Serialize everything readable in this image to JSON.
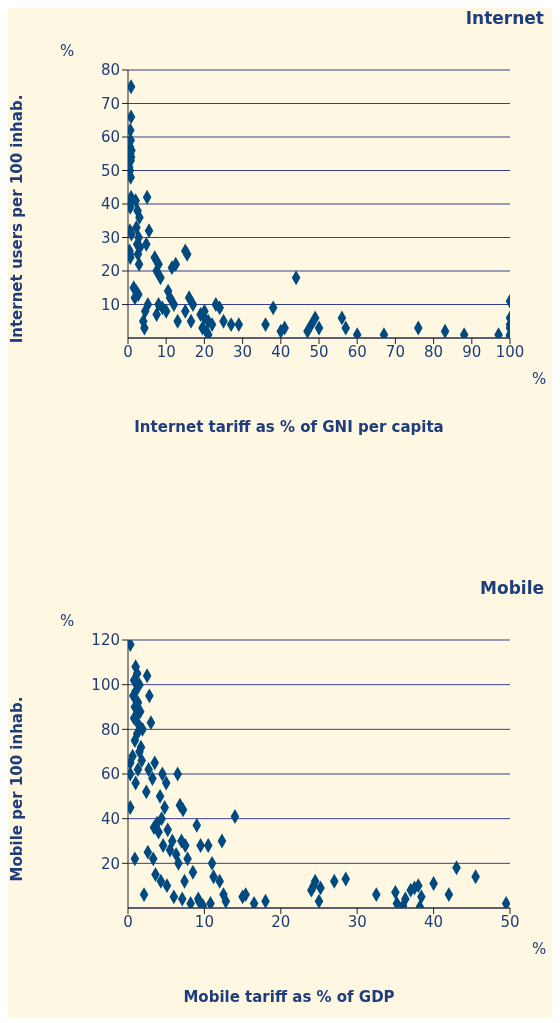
{
  "chart_data": [
    {
      "type": "scatter",
      "title": "Internet",
      "xlabel": "Internet tariff as % of GNI per capita",
      "ylabel": "Internet users per 100 inhab.",
      "annotations": [
        "%",
        "%"
      ],
      "xlim": [
        0,
        100
      ],
      "ylim": [
        0,
        80
      ],
      "xticks": [
        0,
        10,
        20,
        30,
        40,
        50,
        60,
        70,
        80,
        90,
        100
      ],
      "yticks": [
        10,
        20,
        30,
        40,
        50,
        60,
        70,
        80
      ],
      "grid": "y",
      "marker": "diamond",
      "series": [
        {
          "color": "#004a7f",
          "x": [
            0.8,
            0.8,
            0.6,
            0.7,
            0.5,
            0.9,
            0.6,
            0.8,
            0.7,
            0.3,
            0.5,
            0.7,
            0.8,
            0.4,
            0.6,
            0.5,
            0.9,
            0.4,
            0.5,
            0.6,
            2,
            2.5,
            3,
            2.2,
            2.8,
            2.4,
            3.1,
            2.6,
            2.9,
            1.5,
            2.1,
            2.7,
            1.8,
            5,
            5.5,
            4.8,
            5.2,
            4.5,
            4,
            4.3,
            7,
            8,
            7.5,
            8.5,
            8,
            9,
            7.5,
            10.5,
            11,
            12,
            10,
            13,
            11.5,
            12.5,
            15,
            15.5,
            16,
            17,
            15,
            16.5,
            19,
            20,
            21,
            19.5,
            20.5,
            21,
            22,
            20,
            23,
            25,
            24,
            27,
            29,
            36,
            38,
            40,
            41,
            44,
            47,
            48,
            49,
            50,
            56,
            57,
            60,
            67,
            76,
            83,
            88,
            97,
            100,
            100,
            100,
            100,
            100,
            100
          ],
          "values": [
            75,
            66,
            62,
            59,
            57,
            56,
            55,
            54,
            53,
            51,
            50,
            48,
            42,
            40,
            39,
            32,
            31,
            26,
            25,
            24,
            41,
            38,
            36,
            33,
            30,
            28,
            27,
            25,
            22,
            15,
            14,
            13,
            12,
            42,
            32,
            28,
            10,
            8,
            5,
            3,
            24,
            22,
            20,
            18,
            10,
            9,
            7,
            14,
            12,
            10,
            8,
            5,
            21,
            22,
            26,
            25,
            12,
            10,
            8,
            5,
            7,
            6,
            5,
            3,
            2,
            1,
            4,
            8,
            10,
            5,
            9,
            4,
            4,
            4,
            9,
            2,
            3,
            18,
            2,
            4,
            6,
            3,
            6,
            3,
            1,
            1,
            3,
            2,
            1,
            1,
            11,
            6,
            4,
            3,
            1,
            0.5
          ]
        }
      ]
    },
    {
      "type": "scatter",
      "title": "Mobile",
      "xlabel": "Mobile tariff as % of GDP",
      "ylabel": "Mobile per 100 inhab.",
      "annotations": [
        "%",
        "%"
      ],
      "xlim": [
        0,
        50
      ],
      "ylim": [
        0,
        120
      ],
      "xticks": [
        0,
        10,
        20,
        30,
        40,
        50
      ],
      "yticks": [
        20,
        40,
        60,
        80,
        100,
        120
      ],
      "grid": "y",
      "marker": "diamond",
      "series": [
        {
          "color": "#004a7f",
          "x": [
            0.3,
            0.3,
            0.3,
            0.3,
            1,
            1.2,
            0.8,
            1.5,
            1,
            0.7,
            1.3,
            0.9,
            1.6,
            1.1,
            0.8,
            1.4,
            1.9,
            1.2,
            0.9,
            1.7,
            1.5,
            0.6,
            1.8,
            1.3,
            1,
            0.9,
            2.5,
            2.8,
            3,
            3.5,
            2.7,
            3.2,
            2.4,
            3.8,
            3.4,
            4,
            2.6,
            3.3,
            3.6,
            2.1,
            4.5,
            5,
            4.2,
            4.8,
            4.4,
            5.2,
            5.8,
            4.6,
            5.5,
            4.3,
            5.1,
            6.5,
            6.8,
            7.2,
            7,
            7.5,
            6.3,
            7.8,
            6.6,
            7.4,
            6,
            7.1,
            9,
            9.5,
            8.5,
            9.2,
            8.2,
            9.8,
            9.3,
            10.5,
            11,
            11.2,
            12,
            12.5,
            12.8,
            10.8,
            12.3,
            14,
            15,
            15.4,
            16.5,
            18,
            24,
            24.5,
            24.3,
            25,
            25.2,
            27,
            28.5,
            32.5,
            35,
            35.2,
            36,
            36.3,
            37,
            37.5,
            38,
            38.2,
            38.4,
            40,
            42,
            43,
            45.5,
            49.5
          ],
          "values": [
            118,
            65,
            60,
            45,
            108,
            105,
            102,
            100,
            97,
            95,
            92,
            90,
            88,
            86,
            85,
            82,
            80,
            78,
            75,
            72,
            70,
            68,
            66,
            62,
            56,
            22,
            104,
            95,
            83,
            65,
            62,
            58,
            52,
            38,
            36,
            34,
            25,
            22,
            15,
            6,
            60,
            56,
            50,
            45,
            40,
            35,
            30,
            28,
            26,
            12,
            10,
            60,
            46,
            44,
            30,
            28,
            24,
            22,
            20,
            12,
            5,
            4,
            37,
            28,
            16,
            4,
            2,
            1,
            3,
            28,
            20,
            14,
            12,
            6,
            3,
            2,
            30,
            41,
            5,
            6,
            2,
            3,
            8,
            12,
            10,
            3,
            9,
            12,
            13,
            6,
            7,
            2,
            1,
            4,
            8,
            9,
            10,
            0.5,
            5,
            11,
            6,
            18,
            14,
            2
          ]
        }
      ]
    }
  ]
}
